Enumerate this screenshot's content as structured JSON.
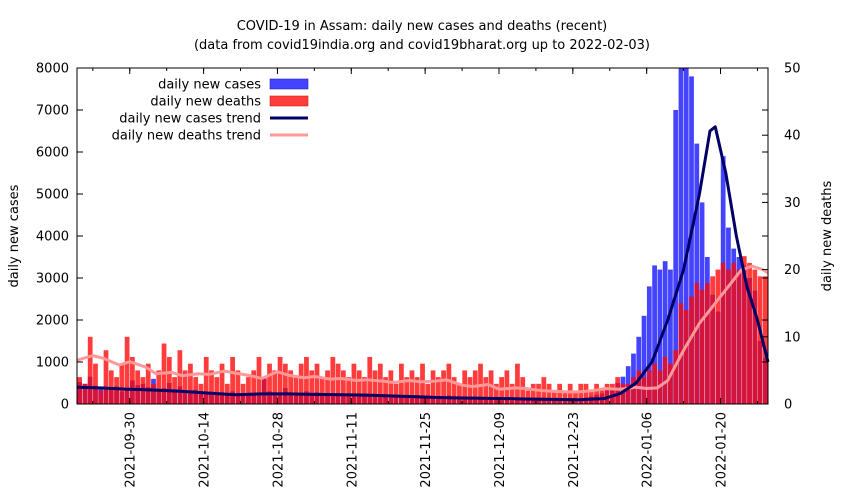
{
  "chart_data": {
    "type": "bar",
    "title": "COVID-19 in Assam: daily new cases and deaths (recent)",
    "subtitle": "(data from covid19india.org and covid19bharat.org up to 2022-02-03)",
    "xlabel": "",
    "ylabel": "daily new cases",
    "y2label": "daily new deaths",
    "ylim": [
      0,
      8000
    ],
    "y2lim": [
      0,
      50
    ],
    "y_ticks": [
      "0",
      "1000",
      "2000",
      "3000",
      "4000",
      "5000",
      "6000",
      "7000",
      "8000"
    ],
    "y2_ticks": [
      "0",
      "10",
      "20",
      "30",
      "40",
      "50"
    ],
    "x_ticks": [
      "2021-09-30",
      "2021-10-14",
      "2021-10-28",
      "2021-11-11",
      "2021-11-25",
      "2021-12-09",
      "2021-12-23",
      "2022-01-06",
      "2022-01-20"
    ],
    "x_start_date": "2021-09-20",
    "x_tick_offsets": [
      10,
      24,
      38,
      52,
      66,
      80,
      94,
      108,
      122
    ],
    "x_days": 131,
    "legend": {
      "placement": "top-left",
      "entries": [
        "daily new cases",
        "daily new deaths",
        "daily new cases trend",
        "daily new deaths trend"
      ]
    },
    "colors": {
      "cases": "#4444ff",
      "deaths": "#ff3b3b",
      "overlap": "#d4143c",
      "cases_trend": "#000066",
      "deaths_trend": "#ff9999"
    },
    "series": [
      {
        "name": "daily new cases",
        "values": [
          520,
          480,
          650,
          430,
          400,
          380,
          350,
          420,
          300,
          350,
          560,
          450,
          480,
          400,
          600,
          300,
          380,
          500,
          350,
          420,
          300,
          320,
          340,
          300,
          280,
          250,
          260,
          200,
          220,
          300,
          250,
          250,
          230,
          220,
          240,
          600,
          300,
          260,
          240,
          380,
          200,
          260,
          220,
          300,
          240,
          280,
          230,
          250,
          200,
          220,
          220,
          180,
          210,
          190,
          230,
          200,
          210,
          180,
          230,
          190,
          180,
          170,
          190,
          160,
          210,
          170,
          180,
          160,
          170,
          150,
          200,
          140,
          150,
          120,
          130,
          100,
          140,
          110,
          130,
          100,
          90,
          110,
          80,
          120,
          100,
          130,
          90,
          110,
          150,
          120,
          100,
          90,
          130,
          110,
          100,
          120,
          150,
          180,
          220,
          250,
          320,
          400,
          500,
          650,
          900,
          1200,
          1600,
          2100,
          2800,
          3300,
          3200,
          3400,
          3200,
          7000,
          8000,
          8000,
          7800,
          6200,
          4800,
          3500,
          2600,
          2200,
          5900,
          4200,
          3700,
          3500,
          3300,
          3000,
          2700,
          1500,
          1100
        ]
      },
      {
        "name": "daily new deaths",
        "values": [
          4,
          3,
          10,
          6,
          2,
          8,
          5,
          4,
          6,
          10,
          7,
          5,
          4,
          6,
          3,
          5,
          9,
          7,
          4,
          8,
          5,
          6,
          4,
          3,
          7,
          5,
          4,
          6,
          3,
          7,
          5,
          3,
          4,
          5,
          7,
          4,
          6,
          5,
          7,
          6,
          5,
          4,
          6,
          7,
          5,
          6,
          4,
          5,
          7,
          6,
          5,
          4,
          6,
          5,
          4,
          7,
          5,
          6,
          4,
          5,
          3,
          6,
          4,
          5,
          4,
          6,
          3,
          5,
          4,
          5,
          6,
          4,
          3,
          5,
          4,
          5,
          6,
          4,
          5,
          3,
          4,
          5,
          3,
          6,
          4,
          2,
          3,
          3,
          4,
          3,
          2,
          3,
          2,
          3,
          2,
          3,
          3,
          2,
          3,
          2,
          3,
          3,
          4,
          3,
          3,
          4,
          5,
          4,
          5,
          6,
          5,
          7,
          6,
          8,
          15,
          14,
          16,
          18,
          17,
          18,
          19,
          20,
          21,
          20,
          21,
          20,
          22,
          21,
          20,
          19,
          19
        ]
      }
    ],
    "trends": [
      {
        "name": "daily new cases trend",
        "points": [
          [
            0,
            400
          ],
          [
            5,
            380
          ],
          [
            10,
            350
          ],
          [
            15,
            330
          ],
          [
            20,
            300
          ],
          [
            25,
            260
          ],
          [
            30,
            220
          ],
          [
            35,
            240
          ],
          [
            40,
            240
          ],
          [
            45,
            230
          ],
          [
            50,
            220
          ],
          [
            55,
            210
          ],
          [
            60,
            190
          ],
          [
            65,
            170
          ],
          [
            70,
            150
          ],
          [
            75,
            140
          ],
          [
            80,
            130
          ],
          [
            85,
            120
          ],
          [
            90,
            110
          ],
          [
            95,
            100
          ],
          [
            100,
            130
          ],
          [
            103,
            250
          ],
          [
            106,
            500
          ],
          [
            109,
            1000
          ],
          [
            112,
            2000
          ],
          [
            115,
            3200
          ],
          [
            118,
            5000
          ],
          [
            120,
            6500
          ],
          [
            121,
            6600
          ],
          [
            123,
            5500
          ],
          [
            125,
            4000
          ],
          [
            127,
            2800
          ],
          [
            129,
            2000
          ],
          [
            130,
            1500
          ],
          [
            131,
            1000
          ]
        ]
      },
      {
        "name": "daily new deaths trend",
        "points": [
          [
            0,
            6.5
          ],
          [
            3,
            7.2
          ],
          [
            5,
            6.8
          ],
          [
            8,
            5.8
          ],
          [
            10,
            6.3
          ],
          [
            13,
            5.5
          ],
          [
            15,
            4.5
          ],
          [
            18,
            4.7
          ],
          [
            20,
            4.2
          ],
          [
            23,
            4.5
          ],
          [
            25,
            4.4
          ],
          [
            28,
            4.9
          ],
          [
            30,
            4.6
          ],
          [
            33,
            4.2
          ],
          [
            35,
            3.8
          ],
          [
            38,
            4.8
          ],
          [
            40,
            4.3
          ],
          [
            43,
            3.9
          ],
          [
            45,
            4.1
          ],
          [
            48,
            3.7
          ],
          [
            50,
            3.8
          ],
          [
            53,
            3.5
          ],
          [
            55,
            3.6
          ],
          [
            58,
            3.4
          ],
          [
            60,
            3.2
          ],
          [
            63,
            3.5
          ],
          [
            65,
            3.3
          ],
          [
            68,
            3.4
          ],
          [
            70,
            3.6
          ],
          [
            73,
            2.8
          ],
          [
            75,
            2.6
          ],
          [
            78,
            2.9
          ],
          [
            80,
            2.2
          ],
          [
            83,
            2.4
          ],
          [
            85,
            2.3
          ],
          [
            88,
            2.0
          ],
          [
            90,
            1.9
          ],
          [
            93,
            1.8
          ],
          [
            95,
            1.8
          ],
          [
            98,
            2.0
          ],
          [
            100,
            2.3
          ],
          [
            103,
            2.2
          ],
          [
            106,
            2.5
          ],
          [
            108,
            2.3
          ],
          [
            110,
            2.4
          ],
          [
            112,
            3.5
          ],
          [
            115,
            8
          ],
          [
            118,
            12
          ],
          [
            120,
            14
          ],
          [
            122,
            16
          ],
          [
            124,
            18
          ],
          [
            126,
            20
          ],
          [
            128,
            20.5
          ],
          [
            130,
            20
          ],
          [
            131,
            19.5
          ]
        ]
      }
    ]
  }
}
